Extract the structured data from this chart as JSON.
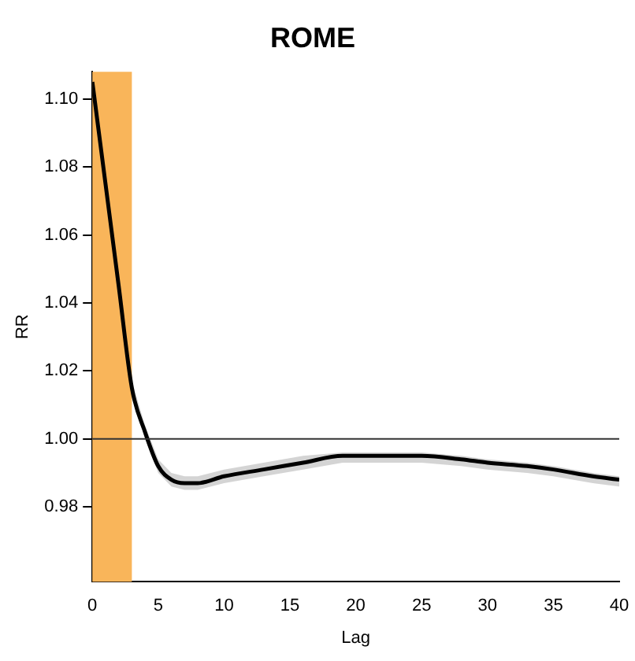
{
  "chart_data": {
    "type": "line",
    "title": "ROME",
    "xlabel": "Lag",
    "ylabel": "RR",
    "x": [
      0,
      1,
      2,
      3,
      4,
      5,
      6,
      7,
      8,
      10,
      13,
      16,
      19,
      22,
      25,
      28,
      30,
      33,
      35,
      38,
      40
    ],
    "series": [
      {
        "color": "#000000",
        "values": [
          1.105,
          1.075,
          1.045,
          1.015,
          1.002,
          0.992,
          0.988,
          0.987,
          0.987,
          0.989,
          0.991,
          0.993,
          0.995,
          0.995,
          0.995,
          0.994,
          0.993,
          0.992,
          0.991,
          0.989,
          0.988
        ],
        "lower": [
          1.103,
          1.073,
          1.043,
          1.013,
          1.0,
          0.99,
          0.986,
          0.985,
          0.985,
          0.987,
          0.989,
          0.991,
          0.993,
          0.993,
          0.993,
          0.992,
          0.991,
          0.99,
          0.989,
          0.987,
          0.986
        ],
        "upper": [
          1.107,
          1.077,
          1.047,
          1.017,
          1.004,
          0.994,
          0.99,
          0.989,
          0.989,
          0.991,
          0.993,
          0.995,
          0.996,
          0.996,
          0.996,
          0.995,
          0.994,
          0.993,
          0.992,
          0.99,
          0.989
        ]
      }
    ],
    "xlim": [
      0,
      40
    ],
    "xticks": [
      0,
      5,
      10,
      15,
      20,
      25,
      30,
      35,
      40
    ],
    "ylim": [
      0.958,
      1.108
    ],
    "yticks": [
      {
        "value": 0.98,
        "label": "0.98"
      },
      {
        "value": 1.0,
        "label": "1.00"
      },
      {
        "value": 1.02,
        "label": "1.02"
      },
      {
        "value": 1.04,
        "label": "1.04"
      },
      {
        "value": 1.06,
        "label": "1.06"
      },
      {
        "value": 1.08,
        "label": "1.08"
      },
      {
        "value": 1.1,
        "label": "1.10"
      }
    ],
    "ref_lines": [
      {
        "axis": "y",
        "value": 1.0,
        "color": "#333333"
      }
    ],
    "bands": [
      {
        "axis": "x",
        "from": 0,
        "to": 3,
        "color": "#f9b55a"
      }
    ],
    "grid": false,
    "legend": false,
    "marker": "none",
    "line_style": "solid"
  }
}
